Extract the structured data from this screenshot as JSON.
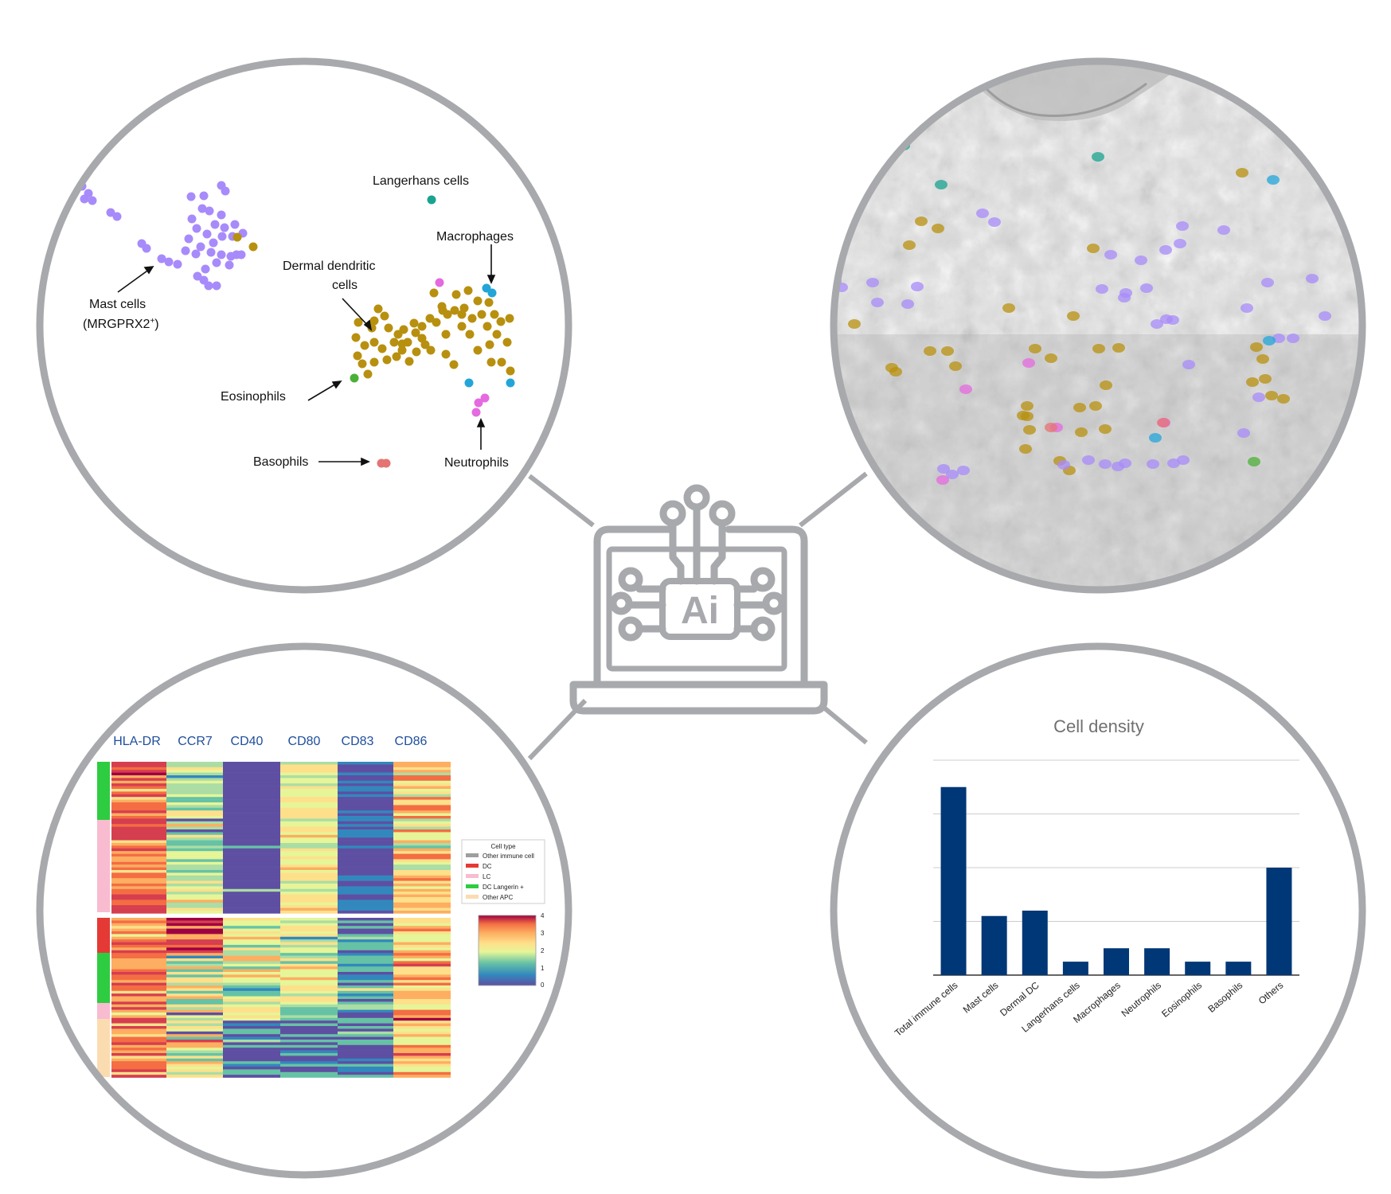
{
  "colors": {
    "circle_border": "#a7a9ac",
    "connector": "#a7a9ac",
    "laptop_icon": "#a7a9ac",
    "bar": "#003776",
    "heat_col_label": "#1f4e9c",
    "mast": "#a78bfa",
    "dermal_dc": "#b8900f",
    "langerhans": "#1aa38f",
    "macrophage": "#23a5d8",
    "neutrophil": "#e56ae0",
    "eosinophil": "#4caf3a",
    "basophil": "#e57373"
  },
  "center_icon": {
    "name": "ai-laptop-icon",
    "text": "Ai"
  },
  "scatter_panel": {
    "labels": {
      "langerhans": "Langerhans cells",
      "macrophages": "Macrophages",
      "dermal_dc_line1": "Dermal dendritic",
      "dermal_dc_line2": "cells",
      "mast_line1": "Mast cells",
      "mast_line2": "(MRGPRX2",
      "mast_sup": "+",
      "mast_close": ")",
      "eosinophils": "Eosinophils",
      "basophils": "Basophils",
      "neutrophils": "Neutrophils"
    }
  },
  "tissue_panel": {},
  "heatmap_panel": {
    "columns": [
      "HLA-DR",
      "CCR7",
      "CD40",
      "CD80",
      "CD83",
      "CD86"
    ],
    "legend_title": "Cell type",
    "legend_items": [
      {
        "label": "Other immune cell",
        "color": "#9e9e9e"
      },
      {
        "label": "DC",
        "color": "#e53935"
      },
      {
        "label": "LC",
        "color": "#f8bbd0"
      },
      {
        "label": "DC Langerin +",
        "color": "#2ecc40"
      },
      {
        "label": "Other APC",
        "color": "#fbdcb0"
      }
    ],
    "colorbar_ticks": [
      "4",
      "3",
      "2",
      "1",
      "0"
    ]
  },
  "chart_data": {
    "type": "bar",
    "title": "Cell density",
    "categories": [
      "Total immune cells",
      "Mast cells",
      "Dermal DC",
      "Langerhans cells",
      "Macrophages",
      "Neutrophils",
      "Eosinophils",
      "Basophils",
      "Others"
    ],
    "values": [
      3.5,
      1.1,
      1.2,
      0.25,
      0.5,
      0.5,
      0.25,
      0.25,
      2.0
    ],
    "ylim": [
      0,
      4
    ],
    "grid": true,
    "xlabel": "",
    "ylabel": ""
  }
}
